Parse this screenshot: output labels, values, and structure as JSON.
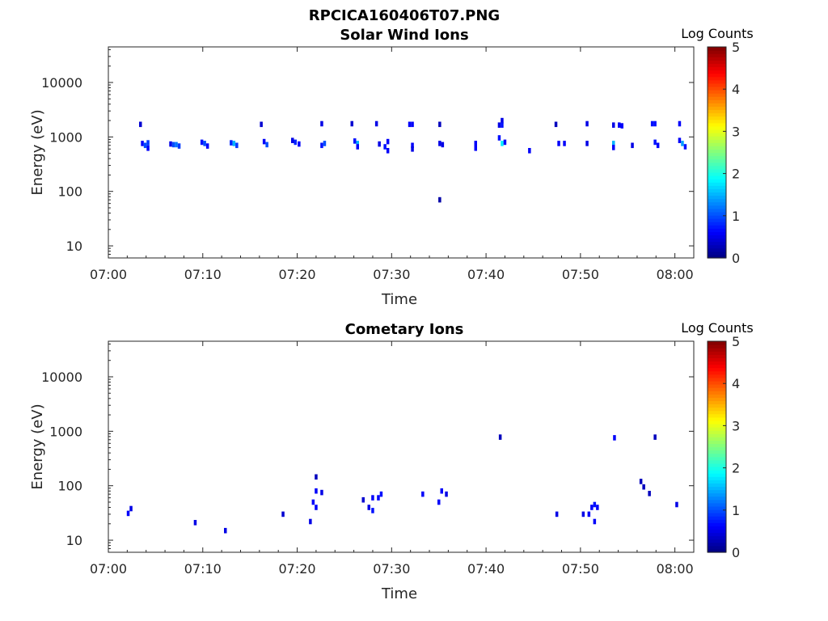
{
  "figure": {
    "title": "RPCICA160406T07.PNG"
  },
  "chart_data": [
    {
      "type": "heatmap",
      "title": "Solar Wind Ions",
      "xlabel": "Time",
      "ylabel": "Energy (eV)",
      "x_ticks": [
        "07:00",
        "07:10",
        "07:20",
        "07:30",
        "07:40",
        "07:50",
        "08:00"
      ],
      "x_range_minutes": [
        0,
        62
      ],
      "y_ticks": [
        "10",
        "100",
        "1000",
        "10000"
      ],
      "y_range": [
        6,
        45000
      ],
      "y_scale": "log",
      "colorbar": {
        "label": "Log Counts",
        "ticks": [
          "0",
          "1",
          "2",
          "3",
          "4",
          "5"
        ],
        "range": [
          0,
          5
        ],
        "colormap": "jet"
      },
      "cells": [
        {
          "t": 3.4,
          "e": 1700,
          "v": 0.4
        },
        {
          "t": 3.6,
          "e": 760,
          "v": 0.6
        },
        {
          "t": 3.9,
          "e": 700,
          "v": 1.0
        },
        {
          "t": 4.2,
          "e": 780,
          "v": 0.9
        },
        {
          "t": 4.2,
          "e": 620,
          "v": 0.6
        },
        {
          "t": 6.6,
          "e": 740,
          "v": 0.5
        },
        {
          "t": 6.9,
          "e": 720,
          "v": 1.0
        },
        {
          "t": 7.2,
          "e": 720,
          "v": 1.2
        },
        {
          "t": 7.5,
          "e": 680,
          "v": 0.9
        },
        {
          "t": 9.9,
          "e": 800,
          "v": 0.7
        },
        {
          "t": 10.2,
          "e": 760,
          "v": 1.0
        },
        {
          "t": 10.5,
          "e": 680,
          "v": 0.6
        },
        {
          "t": 13.0,
          "e": 780,
          "v": 0.8
        },
        {
          "t": 13.3,
          "e": 760,
          "v": 1.5
        },
        {
          "t": 13.6,
          "e": 700,
          "v": 0.9
        },
        {
          "t": 16.2,
          "e": 1700,
          "v": 0.4
        },
        {
          "t": 16.5,
          "e": 820,
          "v": 0.6
        },
        {
          "t": 16.8,
          "e": 720,
          "v": 1.0
        },
        {
          "t": 19.5,
          "e": 860,
          "v": 0.5
        },
        {
          "t": 19.8,
          "e": 800,
          "v": 0.8
        },
        {
          "t": 20.2,
          "e": 740,
          "v": 0.6
        },
        {
          "t": 22.6,
          "e": 1750,
          "v": 0.5
        },
        {
          "t": 22.6,
          "e": 700,
          "v": 0.7
        },
        {
          "t": 22.9,
          "e": 760,
          "v": 1.0
        },
        {
          "t": 25.8,
          "e": 1750,
          "v": 0.4
        },
        {
          "t": 26.1,
          "e": 840,
          "v": 0.7
        },
        {
          "t": 26.4,
          "e": 760,
          "v": 1.5
        },
        {
          "t": 26.4,
          "e": 660,
          "v": 0.6
        },
        {
          "t": 28.4,
          "e": 1750,
          "v": 0.5
        },
        {
          "t": 28.7,
          "e": 740,
          "v": 0.5
        },
        {
          "t": 29.3,
          "e": 660,
          "v": 0.7
        },
        {
          "t": 29.6,
          "e": 820,
          "v": 0.6
        },
        {
          "t": 29.6,
          "e": 560,
          "v": 0.6
        },
        {
          "t": 31.9,
          "e": 1700,
          "v": 0.6
        },
        {
          "t": 32.2,
          "e": 1700,
          "v": 0.6
        },
        {
          "t": 32.2,
          "e": 700,
          "v": 0.6
        },
        {
          "t": 32.2,
          "e": 600,
          "v": 0.5
        },
        {
          "t": 35.1,
          "e": 1700,
          "v": 0.3
        },
        {
          "t": 35.1,
          "e": 760,
          "v": 0.5
        },
        {
          "t": 35.4,
          "e": 720,
          "v": 0.5
        },
        {
          "t": 35.1,
          "e": 70,
          "v": 0.2
        },
        {
          "t": 38.9,
          "e": 760,
          "v": 0.6
        },
        {
          "t": 38.9,
          "e": 620,
          "v": 0.6
        },
        {
          "t": 41.4,
          "e": 1650,
          "v": 0.5
        },
        {
          "t": 41.7,
          "e": 2000,
          "v": 0.5
        },
        {
          "t": 41.7,
          "e": 1650,
          "v": 0.7
        },
        {
          "t": 41.4,
          "e": 960,
          "v": 0.7
        },
        {
          "t": 41.7,
          "e": 760,
          "v": 1.8
        },
        {
          "t": 42.0,
          "e": 800,
          "v": 0.6
        },
        {
          "t": 44.6,
          "e": 560,
          "v": 0.6
        },
        {
          "t": 47.4,
          "e": 1700,
          "v": 0.3
        },
        {
          "t": 47.7,
          "e": 760,
          "v": 0.6
        },
        {
          "t": 48.3,
          "e": 760,
          "v": 0.6
        },
        {
          "t": 50.7,
          "e": 1750,
          "v": 0.5
        },
        {
          "t": 50.7,
          "e": 760,
          "v": 0.5
        },
        {
          "t": 53.5,
          "e": 1650,
          "v": 0.5
        },
        {
          "t": 54.1,
          "e": 1650,
          "v": 0.6
        },
        {
          "t": 54.4,
          "e": 1600,
          "v": 0.6
        },
        {
          "t": 53.5,
          "e": 760,
          "v": 1.5
        },
        {
          "t": 53.5,
          "e": 640,
          "v": 0.6
        },
        {
          "t": 55.5,
          "e": 700,
          "v": 0.5
        },
        {
          "t": 57.6,
          "e": 1750,
          "v": 0.7
        },
        {
          "t": 57.9,
          "e": 1750,
          "v": 0.7
        },
        {
          "t": 57.9,
          "e": 800,
          "v": 0.7
        },
        {
          "t": 58.2,
          "e": 700,
          "v": 0.6
        },
        {
          "t": 60.5,
          "e": 1750,
          "v": 0.6
        },
        {
          "t": 60.5,
          "e": 860,
          "v": 0.6
        },
        {
          "t": 60.8,
          "e": 760,
          "v": 1.4
        },
        {
          "t": 61.1,
          "e": 660,
          "v": 0.7
        }
      ]
    },
    {
      "type": "heatmap",
      "title": "Cometary Ions",
      "xlabel": "Time",
      "ylabel": "Energy (eV)",
      "x_ticks": [
        "07:00",
        "07:10",
        "07:20",
        "07:30",
        "07:40",
        "07:50",
        "08:00"
      ],
      "x_range_minutes": [
        0,
        62
      ],
      "y_ticks": [
        "10",
        "100",
        "1000",
        "10000"
      ],
      "y_range": [
        6,
        45000
      ],
      "y_scale": "log",
      "colorbar": {
        "label": "Log Counts",
        "ticks": [
          "0",
          "1",
          "2",
          "3",
          "4",
          "5"
        ],
        "range": [
          0,
          5
        ],
        "colormap": "jet"
      },
      "cells": [
        {
          "t": 2.1,
          "e": 31,
          "v": 0.6
        },
        {
          "t": 2.4,
          "e": 38,
          "v": 0.5
        },
        {
          "t": 9.2,
          "e": 21,
          "v": 0.5
        },
        {
          "t": 12.4,
          "e": 15,
          "v": 0.5
        },
        {
          "t": 18.5,
          "e": 30,
          "v": 0.4
        },
        {
          "t": 21.4,
          "e": 22,
          "v": 0.5
        },
        {
          "t": 21.7,
          "e": 50,
          "v": 0.6
        },
        {
          "t": 22.0,
          "e": 80,
          "v": 0.6
        },
        {
          "t": 22.0,
          "e": 40,
          "v": 0.6
        },
        {
          "t": 22.0,
          "e": 145,
          "v": 0.3
        },
        {
          "t": 22.6,
          "e": 75,
          "v": 0.5
        },
        {
          "t": 27.0,
          "e": 55,
          "v": 0.4
        },
        {
          "t": 27.6,
          "e": 40,
          "v": 0.5
        },
        {
          "t": 28.0,
          "e": 35,
          "v": 0.7
        },
        {
          "t": 28.0,
          "e": 60,
          "v": 0.6
        },
        {
          "t": 28.6,
          "e": 60,
          "v": 0.6
        },
        {
          "t": 28.9,
          "e": 70,
          "v": 0.7
        },
        {
          "t": 33.3,
          "e": 70,
          "v": 0.6
        },
        {
          "t": 35.0,
          "e": 50,
          "v": 0.6
        },
        {
          "t": 35.3,
          "e": 80,
          "v": 0.6
        },
        {
          "t": 35.8,
          "e": 70,
          "v": 0.5
        },
        {
          "t": 41.5,
          "e": 780,
          "v": 0.3
        },
        {
          "t": 47.5,
          "e": 30,
          "v": 0.5
        },
        {
          "t": 50.3,
          "e": 30,
          "v": 0.5
        },
        {
          "t": 50.9,
          "e": 30,
          "v": 0.6
        },
        {
          "t": 51.2,
          "e": 40,
          "v": 0.6
        },
        {
          "t": 51.5,
          "e": 45,
          "v": 0.7
        },
        {
          "t": 51.5,
          "e": 22,
          "v": 0.6
        },
        {
          "t": 51.8,
          "e": 40,
          "v": 0.6
        },
        {
          "t": 53.6,
          "e": 760,
          "v": 0.6
        },
        {
          "t": 56.4,
          "e": 120,
          "v": 0.3
        },
        {
          "t": 56.7,
          "e": 95,
          "v": 0.3
        },
        {
          "t": 57.3,
          "e": 72,
          "v": 0.3
        },
        {
          "t": 57.9,
          "e": 780,
          "v": 0.3
        },
        {
          "t": 60.2,
          "e": 45,
          "v": 0.5
        }
      ]
    }
  ]
}
